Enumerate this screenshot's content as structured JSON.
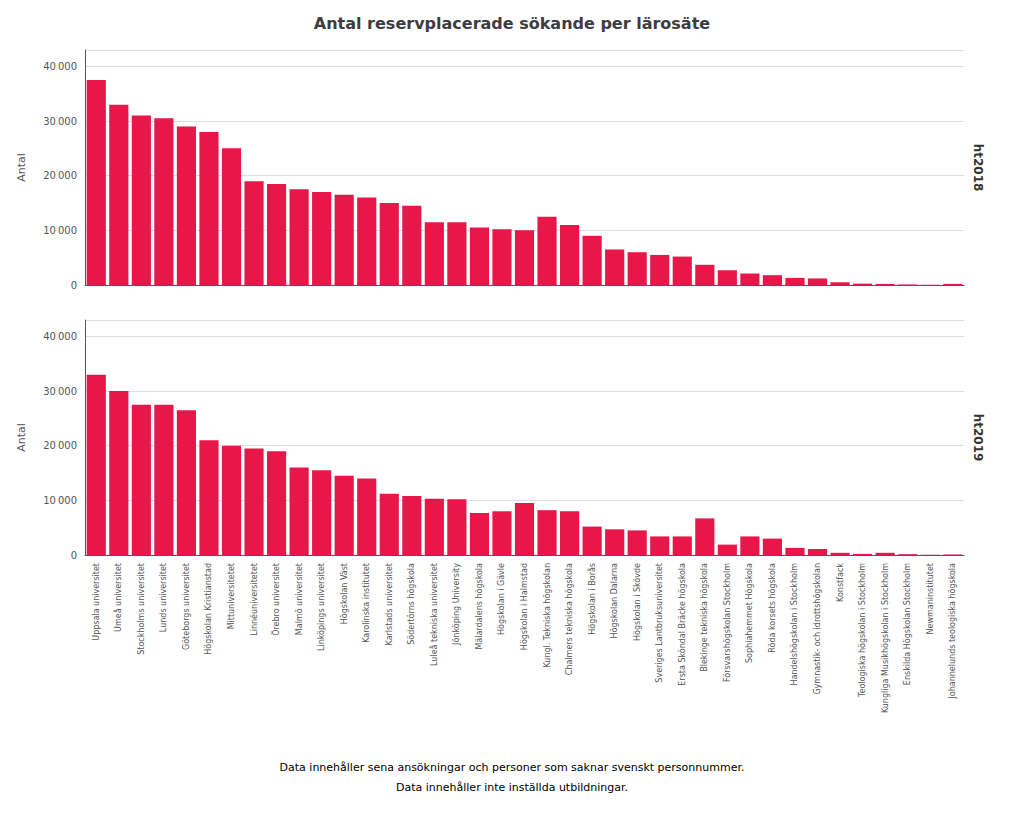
{
  "chart_data": [
    {
      "type": "bar",
      "title": "Antal reservplacerade sökande per lärosäte",
      "subtitle": "ht2018",
      "ylabel": "Antal",
      "color": "#E8174A",
      "categories": [
        "Uppsala universitet",
        "Umeå universitet",
        "Stockholms universitet",
        "Lunds universitet",
        "Göteborgs universitet",
        "Högskolan Kristianstad",
        "Mittuniversitetet",
        "Linnéuniversitetet",
        "Örebro universitet",
        "Malmö universitet",
        "Linköpings universitet",
        "Högskolan Väst",
        "Karolinska institutet",
        "Karlstads universitet",
        "Södertörns högskola",
        "Luleå tekniska universitet",
        "Jönköping University",
        "Mälardalens högskola",
        "Högskolan i Gävle",
        "Högskolan i Halmstad",
        "Kungl. Tekniska högskolan",
        "Chalmers tekniska högskola",
        "Högskolan i Borås",
        "Högskolan Dalarna",
        "Högskolan i Skövde",
        "Sveriges Lantbruksuniversitet",
        "Ersta Sköndal Bräcke högskola",
        "Blekinge tekniska högskola",
        "Försvarshögskolan Stockholm",
        "Sophiahemmet Högskola",
        "Röda korsets högskola",
        "Handelshögskolan i Stockholm",
        "Gymnastik- och idrottshögskolan",
        "Konstfack",
        "Teologiska högskolan i Stockholm",
        "Kungliga Musikhögskolan i Stockholm",
        "Enskilda Högskolan Stockholm",
        "Newmaninstitutet",
        "Johannelunds teologiska högskola"
      ],
      "values": [
        37500,
        33000,
        31000,
        30500,
        29000,
        28000,
        25000,
        19000,
        18500,
        17500,
        17000,
        16500,
        16000,
        15000,
        14500,
        11500,
        11500,
        10500,
        10200,
        10000,
        12500,
        11000,
        9000,
        6500,
        6000,
        5500,
        5200,
        3700,
        2700,
        2100,
        1800,
        1300,
        1200,
        500,
        250,
        200,
        100,
        50,
        200
      ],
      "ylim": [
        0,
        43000
      ],
      "yticks": [
        0,
        {
          "value": 10000,
          "label": "10 000"
        },
        {
          "value": 20000,
          "label": "20 000"
        },
        {
          "value": 30000,
          "label": "30 000"
        },
        {
          "value": 40000,
          "label": "40 000"
        }
      ],
      "grid": true,
      "tick_labels": "y"
    },
    {
      "type": "bar",
      "subtitle": "ht2019",
      "ylabel": "Antal",
      "color": "#E8174A",
      "categories": [
        "Uppsala universitet",
        "Umeå universitet",
        "Stockholms universitet",
        "Lunds universitet",
        "Göteborgs universitet",
        "Högskolan Kristianstad",
        "Mittuniversitetet",
        "Linnéuniversitetet",
        "Örebro universitet",
        "Malmö universitet",
        "Linköpings universitet",
        "Högskolan Väst",
        "Karolinska institutet",
        "Karlstads universitet",
        "Södertörns högskola",
        "Luleå tekniska universitet",
        "Jönköping University",
        "Mälardalens högskola",
        "Högskolan i Gävle",
        "Högskolan i Halmstad",
        "Kungl. Tekniska högskolan",
        "Chalmers tekniska högskola",
        "Högskolan i Borås",
        "Högskolan Dalarna",
        "Högskolan i Skövde",
        "Sveriges Lantbruksuniversitet",
        "Ersta Sköndal Bräcke högskola",
        "Blekinge tekniska högskola",
        "Försvarshögskolan Stockholm",
        "Sophiahemmet Högskola",
        "Röda korsets högskola",
        "Handelshögskolan i Stockholm",
        "Gymnastik- och idrottshögskolan",
        "Konstfack",
        "Teologiska högskolan i Stockholm",
        "Kungliga Musikhögskolan i Stockholm",
        "Enskilda Högskolan Stockholm",
        "Newmaninstitutet",
        "Johannelunds teologiska högskola"
      ],
      "values": [
        33000,
        30000,
        27500,
        27500,
        26500,
        21000,
        20000,
        19500,
        19000,
        16000,
        15500,
        14500,
        14000,
        11200,
        10800,
        10300,
        10200,
        7700,
        8000,
        9500,
        8200,
        8000,
        5200,
        4700,
        4500,
        3400,
        3400,
        6700,
        1900,
        3400,
        3000,
        1300,
        1100,
        400,
        200,
        400,
        150,
        50,
        100
      ],
      "ylim": [
        0,
        43000
      ],
      "yticks": [
        0,
        {
          "value": 10000,
          "label": "10 000"
        },
        {
          "value": 20000,
          "label": "20 000"
        },
        {
          "value": 30000,
          "label": "30 000"
        },
        {
          "value": 40000,
          "label": "40 000"
        }
      ],
      "grid": true,
      "annotations": [
        "Data innehåller sena ansökningar och personer som saknar svenskt personnummer.",
        "Data innehåller inte inställda utbildningar."
      ]
    }
  ]
}
